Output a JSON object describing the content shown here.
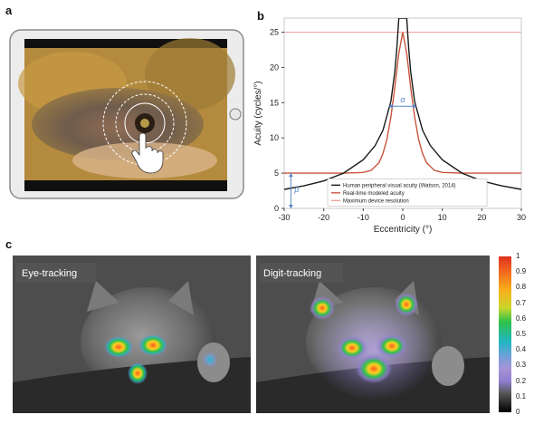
{
  "panels": {
    "a": "a",
    "b": "b",
    "c": "c"
  },
  "chart_data": {
    "type": "line",
    "xlabel": "Eccentricity (°)",
    "ylabel": "Acuity (cycles/°)",
    "xlim": [
      -30,
      30
    ],
    "ylim": [
      0,
      27
    ],
    "xticks": [
      -30,
      -20,
      -10,
      0,
      10,
      20,
      30
    ],
    "yticks": [
      0,
      5,
      10,
      15,
      20,
      25
    ],
    "legend_position": "lower-center",
    "series": [
      {
        "name": "Human peripheral visual acuity (Watson, 2014)",
        "color": "#1a1a1a",
        "x": [
          -30,
          -25,
          -20,
          -15,
          -10,
          -7,
          -5,
          -3,
          -2,
          -1.5,
          -1,
          1,
          1.5,
          2,
          3,
          5,
          7,
          10,
          15,
          20,
          25,
          30
        ],
        "y": [
          2.7,
          3.2,
          3.9,
          5.0,
          6.9,
          8.9,
          11.1,
          15.2,
          19.4,
          22.7,
          27,
          27,
          22.7,
          19.4,
          15.2,
          11.1,
          8.9,
          6.9,
          5.0,
          3.9,
          3.2,
          2.7
        ]
      },
      {
        "name": "Real-time modeled acuity",
        "color": "#c8553d",
        "x": [
          -30,
          -15,
          -10,
          -8,
          -6,
          -5,
          -4,
          -3,
          -2,
          -1,
          0,
          1,
          2,
          3,
          4,
          5,
          6,
          8,
          10,
          15,
          30
        ],
        "y": [
          5,
          5,
          5.1,
          5.4,
          6.5,
          7.8,
          9.8,
          13.0,
          17.2,
          22.0,
          25,
          22.0,
          17.2,
          13.0,
          9.8,
          7.8,
          6.5,
          5.4,
          5.1,
          5,
          5
        ]
      },
      {
        "name": "Maximum device resolution",
        "color": "#f2a3a3",
        "x": [
          -30,
          30
        ],
        "y": [
          25,
          25
        ]
      }
    ],
    "annotations": [
      "α",
      "β"
    ]
  },
  "heatmaps": [
    {
      "label": "Eye-tracking"
    },
    {
      "label": "Digit-tracking"
    }
  ],
  "colorbar": {
    "ticks": [
      "1",
      "0.9",
      "0.8",
      "0.7",
      "0.6",
      "0.5",
      "0.4",
      "0.3",
      "0.2",
      "0.1",
      "0"
    ]
  },
  "colors": {
    "heat_high": "#e0301e",
    "heat_mid": "#2ec24a",
    "heat_low": "#8e7fd0"
  }
}
